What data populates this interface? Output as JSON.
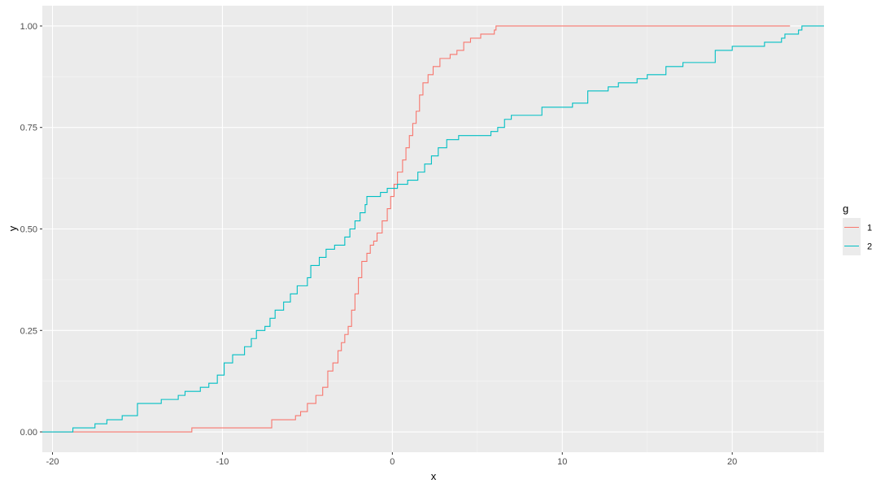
{
  "chart_data": {
    "type": "line",
    "step": true,
    "xlabel": "x",
    "ylabel": "y",
    "xlim": [
      -20.6,
      25.4
    ],
    "ylim": [
      -0.05,
      1.05
    ],
    "x_ticks": [
      -20,
      -10,
      0,
      10,
      20
    ],
    "x_tick_labels": [
      "-20",
      "-10",
      "0",
      "10",
      "20"
    ],
    "y_ticks": [
      0,
      0.25,
      0.5,
      0.75,
      1
    ],
    "y_tick_labels": [
      "0.00",
      "0.25",
      "0.50",
      "0.75",
      "1.00"
    ],
    "grid": true,
    "legend": {
      "title": "g",
      "position": "right"
    },
    "series": [
      {
        "name": "1",
        "color": "#F8766D",
        "points": [
          [
            -20.6,
            0.0
          ],
          [
            -11.8,
            0.01
          ],
          [
            -7.1,
            0.03
          ],
          [
            -5.7,
            0.04
          ],
          [
            -5.4,
            0.05
          ],
          [
            -5.0,
            0.07
          ],
          [
            -4.5,
            0.09
          ],
          [
            -4.1,
            0.11
          ],
          [
            -3.8,
            0.15
          ],
          [
            -3.5,
            0.17
          ],
          [
            -3.2,
            0.2
          ],
          [
            -3.0,
            0.22
          ],
          [
            -2.8,
            0.24
          ],
          [
            -2.6,
            0.26
          ],
          [
            -2.4,
            0.3
          ],
          [
            -2.2,
            0.34
          ],
          [
            -2.0,
            0.38
          ],
          [
            -1.8,
            0.42
          ],
          [
            -1.5,
            0.44
          ],
          [
            -1.3,
            0.46
          ],
          [
            -1.1,
            0.47
          ],
          [
            -0.9,
            0.49
          ],
          [
            -0.6,
            0.52
          ],
          [
            -0.3,
            0.55
          ],
          [
            -0.1,
            0.58
          ],
          [
            0.1,
            0.61
          ],
          [
            0.3,
            0.64
          ],
          [
            0.6,
            0.67
          ],
          [
            0.8,
            0.7
          ],
          [
            1.0,
            0.73
          ],
          [
            1.2,
            0.76
          ],
          [
            1.4,
            0.79
          ],
          [
            1.6,
            0.83
          ],
          [
            1.8,
            0.86
          ],
          [
            2.1,
            0.88
          ],
          [
            2.4,
            0.9
          ],
          [
            2.8,
            0.92
          ],
          [
            3.4,
            0.93
          ],
          [
            3.8,
            0.94
          ],
          [
            4.2,
            0.96
          ],
          [
            4.6,
            0.97
          ],
          [
            5.2,
            0.98
          ],
          [
            6.0,
            0.99
          ],
          [
            6.1,
            1.0
          ],
          [
            23.4,
            1.0
          ]
        ]
      },
      {
        "name": "2",
        "color": "#00BFC4",
        "points": [
          [
            -20.6,
            0.0
          ],
          [
            -18.8,
            0.01
          ],
          [
            -17.5,
            0.02
          ],
          [
            -16.8,
            0.03
          ],
          [
            -15.9,
            0.04
          ],
          [
            -15.0,
            0.07
          ],
          [
            -13.6,
            0.08
          ],
          [
            -12.6,
            0.09
          ],
          [
            -12.2,
            0.1
          ],
          [
            -11.3,
            0.11
          ],
          [
            -10.8,
            0.12
          ],
          [
            -10.3,
            0.14
          ],
          [
            -9.9,
            0.17
          ],
          [
            -9.4,
            0.19
          ],
          [
            -8.7,
            0.21
          ],
          [
            -8.3,
            0.23
          ],
          [
            -8.0,
            0.25
          ],
          [
            -7.5,
            0.26
          ],
          [
            -7.2,
            0.28
          ],
          [
            -6.9,
            0.3
          ],
          [
            -6.4,
            0.32
          ],
          [
            -6.0,
            0.34
          ],
          [
            -5.6,
            0.36
          ],
          [
            -5.0,
            0.38
          ],
          [
            -4.8,
            0.41
          ],
          [
            -4.3,
            0.43
          ],
          [
            -3.9,
            0.45
          ],
          [
            -3.4,
            0.46
          ],
          [
            -2.8,
            0.48
          ],
          [
            -2.5,
            0.5
          ],
          [
            -2.2,
            0.52
          ],
          [
            -1.9,
            0.54
          ],
          [
            -1.6,
            0.56
          ],
          [
            -1.5,
            0.58
          ],
          [
            -0.7,
            0.59
          ],
          [
            -0.3,
            0.6
          ],
          [
            0.3,
            0.61
          ],
          [
            0.9,
            0.62
          ],
          [
            1.5,
            0.64
          ],
          [
            1.9,
            0.66
          ],
          [
            2.3,
            0.68
          ],
          [
            2.7,
            0.7
          ],
          [
            3.2,
            0.72
          ],
          [
            3.9,
            0.73
          ],
          [
            5.8,
            0.74
          ],
          [
            6.2,
            0.75
          ],
          [
            6.6,
            0.77
          ],
          [
            7.0,
            0.78
          ],
          [
            8.8,
            0.8
          ],
          [
            10.6,
            0.81
          ],
          [
            11.5,
            0.84
          ],
          [
            12.7,
            0.85
          ],
          [
            13.3,
            0.86
          ],
          [
            14.4,
            0.87
          ],
          [
            15.0,
            0.88
          ],
          [
            16.1,
            0.9
          ],
          [
            17.1,
            0.91
          ],
          [
            19.0,
            0.94
          ],
          [
            20.0,
            0.95
          ],
          [
            21.9,
            0.96
          ],
          [
            22.9,
            0.97
          ],
          [
            23.1,
            0.98
          ],
          [
            23.9,
            0.99
          ],
          [
            24.1,
            1.0
          ],
          [
            25.4,
            1.0
          ]
        ]
      }
    ]
  }
}
